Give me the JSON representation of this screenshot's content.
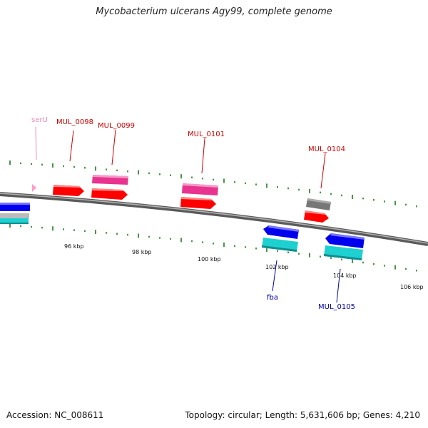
{
  "title": "Mycobacterium ulcerans Agy99, complete genome",
  "footer": {
    "accession": "Accession: NC_008611",
    "stats": "Topology: circular; Length: 5,631,606 bp; Genes: 4,210"
  },
  "colors": {
    "backbone": "#7a7a7a",
    "tick": "#1e7a1e",
    "cds_forward": "#ff0000",
    "cds_reverse": "#0000ee",
    "gene_forward": "#e8338f",
    "gene_reverse": "#1fd0d0",
    "trna": "#ff9ccc",
    "other": "#777777",
    "label_forward": "#cc0000",
    "label_reverse": "#0000aa",
    "label_trna": "#ee88bb"
  },
  "scale": {
    "labels": [
      "96 kbp",
      "98 kbp",
      "100 kbp",
      "102 kbp",
      "104 kbp",
      "106 kbp"
    ]
  },
  "genes": [
    {
      "id": "serU",
      "label": "serU",
      "strand": "+",
      "type": "tRNA"
    },
    {
      "id": "MUL_0098",
      "label": "MUL_0098",
      "strand": "+",
      "type": "CDS"
    },
    {
      "id": "MUL_0099",
      "label": "MUL_0099",
      "strand": "+",
      "type": "CDS"
    },
    {
      "id": "MUL_0101",
      "label": "MUL_0101",
      "strand": "+",
      "type": "CDS"
    },
    {
      "id": "MUL_0104",
      "label": "MUL_0104",
      "strand": "+",
      "type": "CDS"
    },
    {
      "id": "fba",
      "label": "fba",
      "strand": "-",
      "type": "CDS"
    },
    {
      "id": "MUL_0105",
      "label": "MUL_0105",
      "strand": "-",
      "type": "CDS"
    }
  ]
}
